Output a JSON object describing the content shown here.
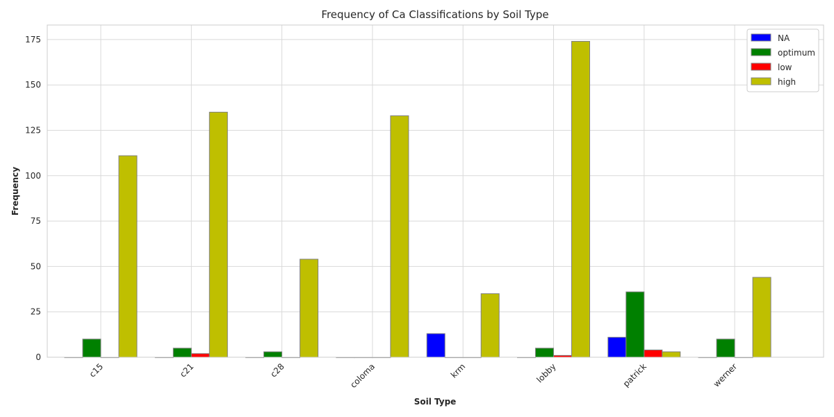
{
  "chart_data": {
    "type": "bar",
    "title": "Frequency of Ca Classifications by Soil Type",
    "xlabel": "Soil Type",
    "ylabel": "Frequency",
    "categories": [
      "c15",
      "c21",
      "c28",
      "coloma",
      "krm",
      "lobby",
      "patrick",
      "werner"
    ],
    "series": [
      {
        "name": "NA",
        "color": "#0000ff",
        "values": [
          0,
          0,
          0,
          0,
          13,
          0,
          11,
          0
        ]
      },
      {
        "name": "optimum",
        "color": "#008000",
        "values": [
          10,
          5,
          3,
          0,
          0,
          5,
          36,
          10
        ]
      },
      {
        "name": "low",
        "color": "#ff0000",
        "values": [
          0,
          2,
          0,
          0,
          0,
          1,
          4,
          0
        ]
      },
      {
        "name": "high",
        "color": "#bfbf00",
        "values": [
          111,
          135,
          54,
          133,
          35,
          174,
          3,
          44
        ]
      }
    ],
    "ylim": [
      0,
      183
    ],
    "yticks": [
      0,
      25,
      50,
      75,
      100,
      125,
      150,
      175
    ],
    "grid": true,
    "legend_position": "top-right"
  }
}
